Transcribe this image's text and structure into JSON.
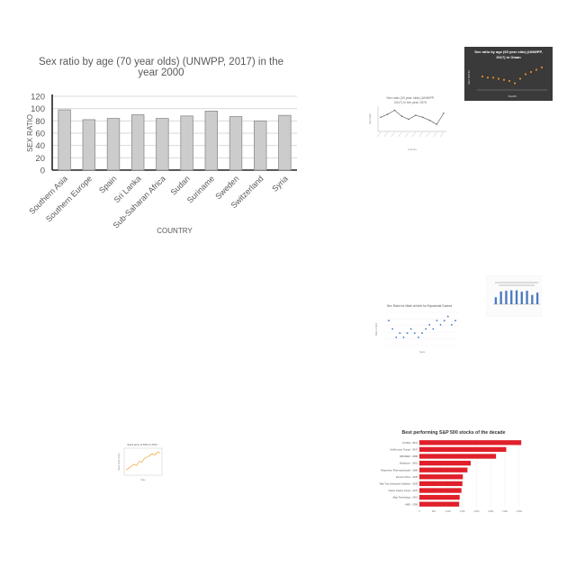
{
  "chart_data": [
    {
      "type": "bar",
      "title": "Sex ratio by age (70 year olds) (UNWPP, 2017) in the year 2000",
      "title_lines": [
        "Sex ratio by age (70 year olds) (UNWPP, 2017) in the",
        "year 2000"
      ],
      "xlabel": "COUNTRY",
      "ylabel": "SEX RATIO",
      "categories": [
        "Southern Asia",
        "Southern Europe",
        "Spain",
        "Sri Lanka",
        "Sub-Saharan Africa",
        "Sudan",
        "Suriname",
        "Sweden",
        "Switzerland",
        "Syria"
      ],
      "values": [
        98,
        82,
        84,
        90,
        84,
        88,
        96,
        87,
        80,
        89
      ],
      "ylim": [
        0,
        120
      ],
      "yticks": [
        0,
        20,
        40,
        60,
        80,
        100,
        120
      ],
      "grid": true,
      "colors": {
        "bar_fill": "#cccccc",
        "bar_stroke": "#8c8c8c",
        "grid": "#d9d9d9"
      }
    },
    {
      "type": "scatter",
      "title": "Sex ratio by age (60 year olds) (UNWPP, 2017) in Oman",
      "title_lines": [
        "Sex ratio by age (60 year olds) (UNWPP,",
        "2017) in Oman"
      ],
      "xlabel": "YEARS",
      "ylabel": "SEX RATIO",
      "y": [
        112,
        111,
        111,
        110,
        109,
        108,
        106,
        110,
        114,
        116,
        118,
        120
      ],
      "theme": "dark",
      "colors": {
        "background": "#3a3a3a",
        "point": "#e08a2e"
      }
    },
    {
      "type": "line",
      "title": "Sex ratio by age (20 year olds) (UNWPP, 2017) in the year 1970",
      "title_lines": [
        "Sex ratio (20 year olds) (UNWPP,",
        "2017) in the year 1970"
      ],
      "xlabel": "Country",
      "ylabel": "Sex Ratio",
      "y": [
        99,
        102,
        106,
        100,
        97,
        101,
        99,
        96,
        92,
        103
      ],
      "colors": {
        "line": "#555555"
      }
    },
    {
      "type": "scatter",
      "title": "Sex Ratio for Male at birth for Equatorial Guinea",
      "xlabel": "Years",
      "ylabel": "Male at birth",
      "y": [
        105,
        103,
        101,
        102,
        101,
        102,
        103,
        102,
        101,
        102,
        103,
        104,
        103,
        105,
        104,
        105,
        106,
        104,
        105
      ],
      "colors": {
        "point": "#3b6fc4"
      }
    },
    {
      "type": "bar",
      "title": "Male population (% of total) (World Bank, 2018) in the year 2006",
      "values": [
        30,
        55,
        58,
        60,
        60,
        54,
        58,
        40,
        50
      ],
      "colors": {
        "bar": "#4a79c2"
      }
    },
    {
      "type": "line",
      "title": "Stock price of P&G in 2013",
      "xlabel": "Date",
      "ylabel": "Stock Price (USD)",
      "y": [
        1.0,
        1.2,
        1.5,
        1.8,
        1.6,
        2.2,
        2.1,
        2.6,
        2.8,
        3.0,
        3.3,
        3.1,
        3.5,
        3.4
      ],
      "colors": {
        "line": "#f0a030"
      }
    },
    {
      "type": "bar",
      "orientation": "horizontal",
      "title": "Best performing S&P 500 stocks of the decade",
      "categories": [
        "NVIDIA - 3574",
        "Netflix (now Trump) - 3047",
        "ABIOMED - 2688",
        "Broadcom - 1801",
        "Regeneron Pharmaceuticals - 1686",
        "Domino Pizza - 1525",
        "Take Two Interactive Software - 1509",
        "Tractor Supply Group - 1475",
        "Align Technology - 1413",
        "AMD - 1396"
      ],
      "values": [
        3574,
        3047,
        2688,
        1801,
        1686,
        1525,
        1509,
        1475,
        1413,
        1396
      ],
      "xticks": [
        0,
        500,
        1000,
        1500,
        2000,
        2500,
        3000,
        3500
      ],
      "colors": {
        "bar": "#e0202a"
      }
    }
  ]
}
